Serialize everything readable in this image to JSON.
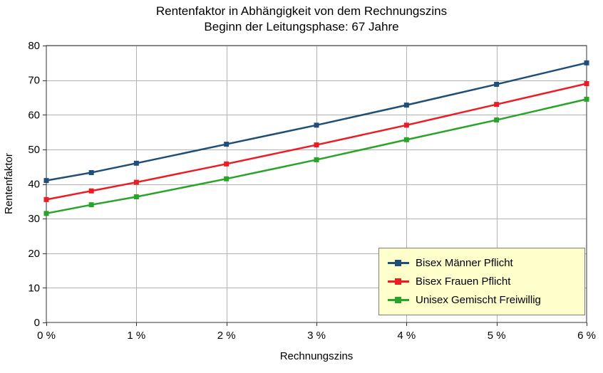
{
  "chart_data": {
    "type": "line",
    "title": "Rentenfaktor in Abhängigkeit von dem Rechnungszins",
    "subtitle": "Beginn der Leitungsphase: 67 Jahre",
    "xlabel": "Rechnungszins",
    "ylabel": "Rentenfaktor",
    "xlim": [
      0,
      6
    ],
    "ylim": [
      0,
      80
    ],
    "grid": true,
    "grid_color": "#b3b3b3",
    "axis_color": "#333333",
    "legend_position": "bottom-right",
    "legend_bg": "#ffffcc",
    "x_tick_values": [
      0,
      1,
      2,
      3,
      4,
      5,
      6
    ],
    "x_tick_labels": [
      "0 %",
      "1 %",
      "2 %",
      "3 %",
      "4 %",
      "5 %",
      "6 %"
    ],
    "y_ticks": [
      0,
      10,
      20,
      30,
      40,
      50,
      60,
      70,
      80
    ],
    "x": [
      0,
      0.5,
      1,
      2,
      3,
      4,
      5,
      6
    ],
    "series": [
      {
        "name": "Bisex Männer Pflicht",
        "color": "#1f4e79",
        "values": [
          41.0,
          43.3,
          46.0,
          51.5,
          57.0,
          62.8,
          68.8,
          75.0
        ]
      },
      {
        "name": "Bisex Frauen Pflicht",
        "color": "#ed1c24",
        "values": [
          35.5,
          38.0,
          40.5,
          45.8,
          51.3,
          57.0,
          63.0,
          69.0
        ]
      },
      {
        "name": "Unisex Gemischt Freiwillig",
        "color": "#28a428",
        "values": [
          31.5,
          34.0,
          36.3,
          41.5,
          47.0,
          52.8,
          58.5,
          64.5
        ]
      }
    ]
  }
}
